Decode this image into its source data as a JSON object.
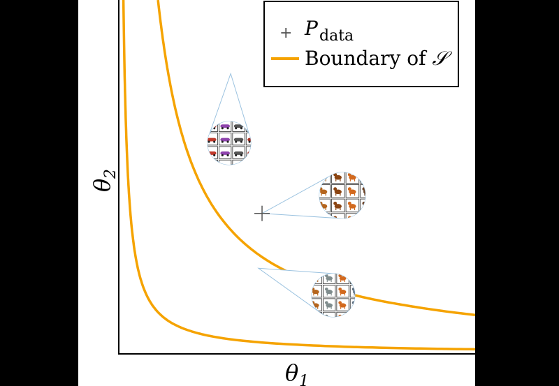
{
  "chart_data": {
    "type": "line",
    "xlabel": "θ",
    "xlabel_sub": "1",
    "ylabel": "θ",
    "ylabel_sub": "2",
    "legend": {
      "placement": "top-right",
      "entries": [
        {
          "marker": "+",
          "label_main": "P",
          "label_sub": "data",
          "color": "#555555"
        },
        {
          "marker": "line",
          "label_main": "Boundary of ",
          "label_symbol": "𝒮",
          "color": "#f5a300"
        }
      ]
    },
    "points": [
      {
        "name": "P_data",
        "x": 0.402,
        "y": 0.397
      }
    ],
    "series": [
      {
        "color": "#f5a300",
        "x": [
          0.013,
          0.02,
          0.03,
          0.05,
          0.08,
          0.12,
          0.2,
          0.3,
          0.5,
          0.8,
          1.0
        ],
        "y": [
          1.0,
          0.648,
          0.432,
          0.259,
          0.162,
          0.108,
          0.065,
          0.043,
          0.026,
          0.016,
          0.013
        ]
      },
      {
        "color": "#f5a300",
        "x": [
          0.11,
          0.13,
          0.15,
          0.2,
          0.25,
          0.3,
          0.4,
          0.5,
          0.6,
          0.7,
          0.8,
          1.0
        ],
        "y": [
          1.0,
          0.846,
          0.733,
          0.55,
          0.44,
          0.367,
          0.275,
          0.22,
          0.183,
          0.157,
          0.138,
          0.11
        ]
      }
    ],
    "insets": [
      {
        "name": "car-samples-inset",
        "anchor_x": 0.314,
        "anchor_y": 0.792,
        "content": "cars",
        "colors": [
          "#c0392b",
          "#8e44ad",
          "#555555",
          "#a93226"
        ]
      },
      {
        "name": "dog-samples-inset-center",
        "anchor_x": 0.402,
        "anchor_y": 0.397,
        "content": "dogs",
        "colors": [
          "#b5651d",
          "#8b4513",
          "#d2691e",
          "#6b4226"
        ]
      },
      {
        "name": "dog-samples-inset-boundary",
        "anchor_x": 0.392,
        "anchor_y": 0.242,
        "content": "dogs",
        "colors": [
          "#b5651d",
          "#7f8c8d",
          "#d2691e",
          "#5d6d7e"
        ]
      }
    ],
    "xlim": [
      0,
      1
    ],
    "ylim": [
      0,
      1
    ],
    "grid": false
  }
}
